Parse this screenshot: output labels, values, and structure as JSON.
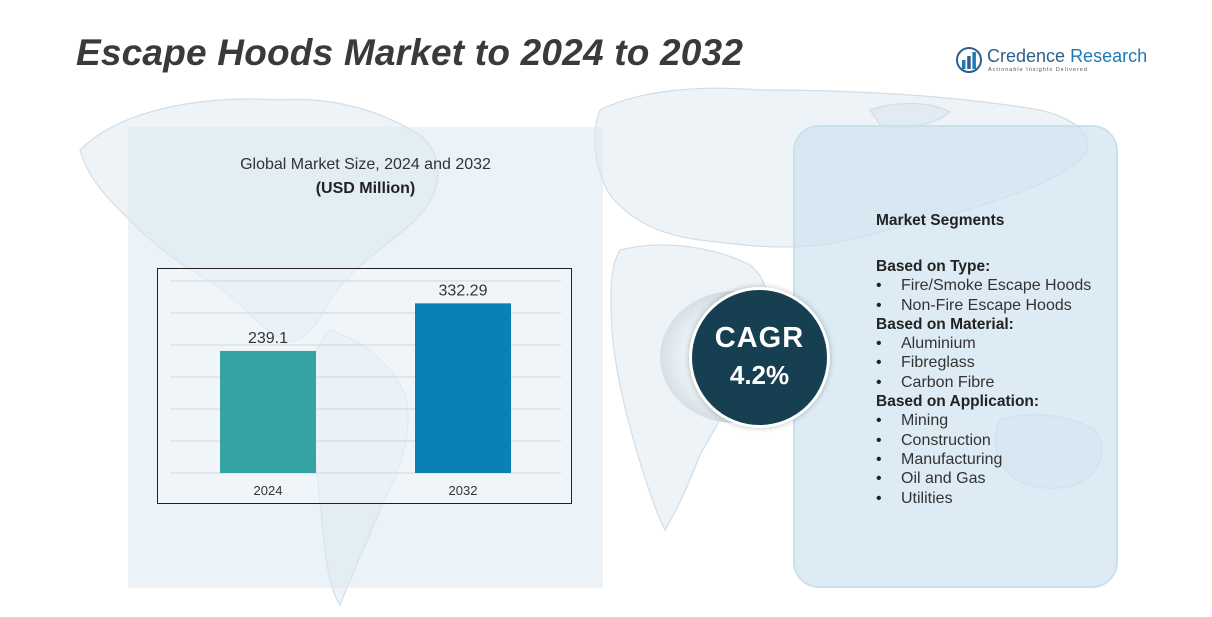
{
  "title": "Escape Hoods Market to 2024 to 2032",
  "logo": {
    "name_part1": "Credence",
    "name_part2": "Research",
    "tagline": "Actionable Insights Delivered",
    "icon": "bar-chart-globe-icon"
  },
  "chart_heading": "Global Market Size,  2024 and 2032",
  "chart_subheading": "(USD Million)",
  "chart_data": {
    "type": "bar",
    "categories": [
      "2024",
      "2032"
    ],
    "values": [
      239.1,
      332.29
    ],
    "value_labels": [
      "239.1",
      "332.29"
    ],
    "colors": [
      "#35a3a4",
      "#0b80b4"
    ],
    "ylim": [
      0,
      380
    ],
    "grid": true,
    "title": "",
    "xlabel": "",
    "ylabel": ""
  },
  "cagr": {
    "label": "CAGR",
    "value": "4.2%"
  },
  "segments": {
    "title": "Market Segments",
    "groups": [
      {
        "title": "Based on  Type:",
        "items": [
          "Fire/Smoke Escape Hoods",
          "Non-Fire Escape Hoods"
        ]
      },
      {
        "title": "Based on Material:",
        "items": [
          "Aluminium",
          "Fibreglass",
          "Carbon Fibre"
        ]
      },
      {
        "title": "Based on Application:",
        "items": [
          "Mining",
          "Construction",
          "Manufacturing",
          "Oil and Gas",
          "Utilities"
        ]
      }
    ]
  },
  "colors": {
    "panel_left": "#dae8f3",
    "panel_right": "#cfe3f0",
    "cagr_circle": "#173f52",
    "logo_blue": "#1f79b6"
  }
}
